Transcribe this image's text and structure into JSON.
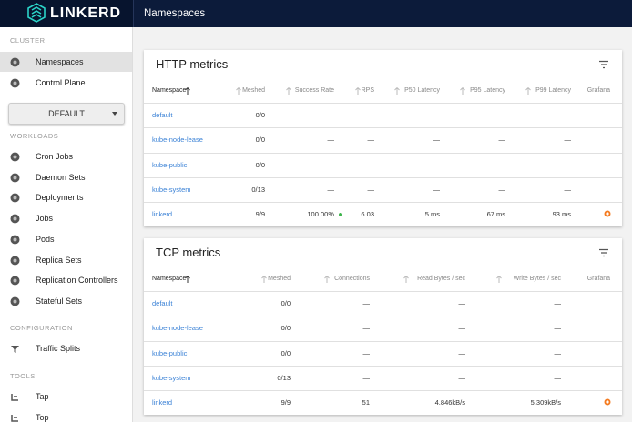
{
  "header": {
    "title": "Namespaces"
  },
  "sidebar": {
    "brand": "LINKERD",
    "cluster": {
      "heading": "CLUSTER",
      "items": [
        "Namespaces",
        "Control Plane"
      ]
    },
    "namespace_select": "DEFAULT",
    "workloads": {
      "heading": "WORKLOADS",
      "items": [
        "Cron Jobs",
        "Daemon Sets",
        "Deployments",
        "Jobs",
        "Pods",
        "Replica Sets",
        "Replication Controllers",
        "Stateful Sets"
      ]
    },
    "configuration": {
      "heading": "CONFIGURATION",
      "items": [
        "Traffic Splits"
      ]
    },
    "tools": {
      "heading": "TOOLS",
      "items": [
        "Tap",
        "Top"
      ]
    }
  },
  "http_metrics": {
    "title": "HTTP metrics",
    "columns": [
      "Namespace",
      "Meshed",
      "Success Rate",
      "RPS",
      "P50 Latency",
      "P95 Latency",
      "P99 Latency",
      "Grafana"
    ],
    "rows": [
      [
        "default",
        "0/0",
        "—",
        "—",
        "—",
        "—",
        "—"
      ],
      [
        "kube-node-lease",
        "0/0",
        "—",
        "—",
        "—",
        "—",
        "—"
      ],
      [
        "kube-public",
        "0/0",
        "—",
        "—",
        "—",
        "—",
        "—"
      ],
      [
        "kube-system",
        "0/13",
        "—",
        "—",
        "—",
        "—",
        "—"
      ],
      [
        "linkerd",
        "9/9",
        "100.00%",
        "6.03",
        "5 ms",
        "67 ms",
        "93 ms"
      ]
    ]
  },
  "tcp_metrics": {
    "title": "TCP metrics",
    "columns": [
      "Namespace",
      "Meshed",
      "Connections",
      "Read Bytes / sec",
      "Write Bytes / sec",
      "Grafana"
    ],
    "rows": [
      [
        "default",
        "0/0",
        "—",
        "—",
        "—"
      ],
      [
        "kube-node-lease",
        "0/0",
        "—",
        "—",
        "—"
      ],
      [
        "kube-public",
        "0/0",
        "—",
        "—",
        "—"
      ],
      [
        "kube-system",
        "0/13",
        "—",
        "—",
        "—"
      ],
      [
        "linkerd",
        "9/9",
        "51",
        "4.846kB/s",
        "5.309kB/s"
      ]
    ]
  }
}
